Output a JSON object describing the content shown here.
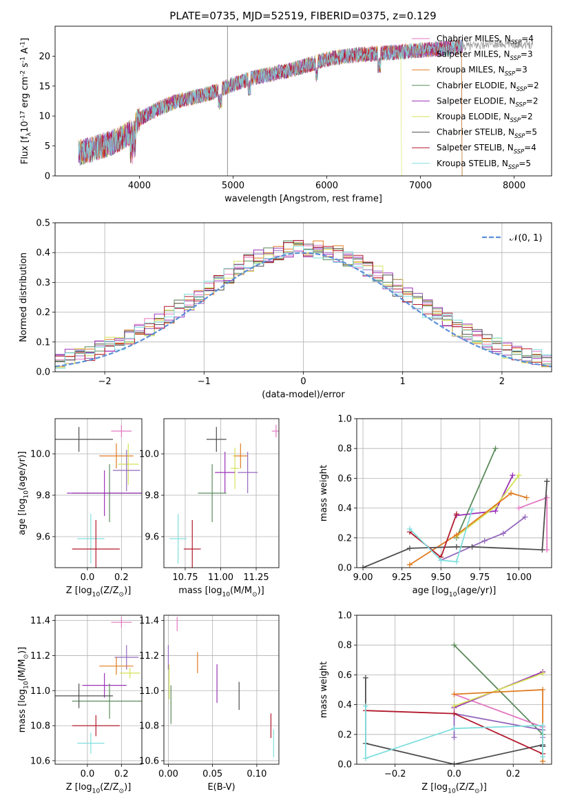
{
  "figure": {
    "title": "PLATE=0735, MJD=52519, FIBERID=0375, z=0.129"
  },
  "models": [
    {
      "name": "Chabrier MILES, N$_{SSP}$=4",
      "color": "#e377c2"
    },
    {
      "name": "Salpeter MILES, N$_{SSP}$=3",
      "color": "#9467bd"
    },
    {
      "name": "Kroupa MILES, N$_{SSP}$=3",
      "color": "#e07b20"
    },
    {
      "name": "Chabrier ELODIE, N$_{SSP}$=2",
      "color": "#5a8a5a"
    },
    {
      "name": "Salpeter ELODIE, N$_{SSP}$=2",
      "color": "#9b30b8"
    },
    {
      "name": "Kroupa ELODIE, N$_{SSP}$=2",
      "color": "#d4e157"
    },
    {
      "name": "Chabrier STELIB, N$_{SSP}$=5",
      "color": "#4d4d4d"
    },
    {
      "name": "Salpeter STELIB, N$_{SSP}$=4",
      "color": "#b2182b"
    },
    {
      "name": "Kroupa STELIB, N$_{SSP}$=5",
      "color": "#80dede"
    }
  ],
  "chart_data": [
    {
      "id": "spectrum",
      "type": "line",
      "title": "PLATE=0735, MJD=52519, FIBERID=0375, z=0.129",
      "xlabel": "wavelength [Angstrom, rest frame]",
      "ylabel": "Flux [f$_\\lambda$10$^{-17}$ erg cm$^{-2}$ s$^{-1}$ A$^{-1}$]",
      "xlim": [
        3100,
        8400
      ],
      "ylim": [
        0,
        25
      ],
      "xticks": [
        4000,
        5000,
        6000,
        7000,
        8000
      ],
      "yticks": [
        0,
        5,
        10,
        15,
        20
      ],
      "grid": false,
      "legend": "top-right",
      "continuum": [
        [
          3350,
          3.8
        ],
        [
          3500,
          4.5
        ],
        [
          3700,
          5.5
        ],
        [
          3900,
          7.2
        ],
        [
          4000,
          9.5
        ],
        [
          4200,
          11.2
        ],
        [
          4400,
          12.5
        ],
        [
          4600,
          13.2
        ],
        [
          4800,
          14.0
        ],
        [
          5000,
          15.3
        ],
        [
          5200,
          16.3
        ],
        [
          5400,
          17.0
        ],
        [
          5600,
          17.6
        ],
        [
          5800,
          18.5
        ],
        [
          6000,
          19.5
        ],
        [
          6200,
          20.0
        ],
        [
          6400,
          20.3
        ],
        [
          6600,
          20.5
        ],
        [
          6800,
          20.7
        ],
        [
          7000,
          21.0
        ],
        [
          7200,
          21.2
        ],
        [
          7400,
          21.5
        ],
        [
          7600,
          21.8
        ],
        [
          7800,
          22.0
        ],
        [
          8000,
          22.0
        ],
        [
          8200,
          22.0
        ]
      ]
    },
    {
      "id": "residuals",
      "type": "line",
      "xlabel": "(data-model)/error",
      "ylabel": "Normed distribution",
      "xlim": [
        -2.5,
        2.5
      ],
      "ylim": [
        0,
        0.5
      ],
      "xticks": [
        -2,
        -1,
        0,
        1,
        2
      ],
      "yticks": [
        0.0,
        0.1,
        0.2,
        0.3,
        0.4,
        0.5
      ],
      "grid": true,
      "legend": "top-right",
      "reference": {
        "name": "$\\mathcal{N}(0, 1)$",
        "color": "#5b8fd6",
        "mean": 0,
        "sigma": 1
      }
    },
    {
      "id": "age-vs-Z",
      "type": "scatter",
      "xlabel": "Z [log$_{10}$(Z/Z$_\\odot$)]",
      "ylabel": "age  [log$_{10}$(age/yr)]",
      "xlim": [
        -0.19,
        0.32
      ],
      "ylim": [
        9.45,
        10.17
      ],
      "xticks": [
        0.0,
        0.2
      ],
      "yticks": [
        9.6,
        9.8,
        10.0
      ],
      "grid": true,
      "points": [
        {
          "model": 0,
          "x": 0.2,
          "xerr": 0.06,
          "y": 10.11,
          "yerr": 0.03
        },
        {
          "model": 2,
          "x": 0.17,
          "xerr": 0.1,
          "y": 9.99,
          "yerr": 0.06
        },
        {
          "model": 5,
          "x": 0.24,
          "xerr": 0.06,
          "y": 9.95,
          "yerr": 0.1
        },
        {
          "model": 1,
          "x": 0.23,
          "xerr": 0.08,
          "y": 9.92,
          "yerr": 0.1
        },
        {
          "model": 3,
          "x": 0.13,
          "xerr": 0.22,
          "y": 9.81,
          "yerr": 0.14
        },
        {
          "model": 4,
          "x": 0.1,
          "xerr": 0.22,
          "y": 9.81,
          "yerr": 0.11
        },
        {
          "model": 6,
          "x": -0.05,
          "xerr": 0.2,
          "y": 10.07,
          "yerr": 0.06
        },
        {
          "model": 8,
          "x": 0.02,
          "xerr": 0.08,
          "y": 9.59,
          "yerr": 0.12
        },
        {
          "model": 7,
          "x": 0.05,
          "xerr": 0.14,
          "y": 9.54,
          "yerr": 0.14
        }
      ]
    },
    {
      "id": "age-vs-mass",
      "type": "scatter",
      "xlabel": "mass [log$_{10}$(M/M$_\\odot$)]",
      "ylabel": "",
      "xlim": [
        10.6,
        11.41
      ],
      "ylim": [
        9.45,
        10.17
      ],
      "xticks": [
        10.75,
        11.0,
        11.25
      ],
      "yticks": [
        9.6,
        9.8,
        10.0
      ],
      "xticklabels": [
        "10.75",
        "11.00",
        "11.25"
      ],
      "grid": true,
      "points": [
        {
          "model": 0,
          "x": 11.39,
          "xerr": 0.03,
          "y": 10.11,
          "yerr": 0.03
        },
        {
          "model": 2,
          "x": 11.14,
          "xerr": 0.05,
          "y": 9.99,
          "yerr": 0.06
        },
        {
          "model": 5,
          "x": 11.1,
          "xerr": 0.03,
          "y": 9.93,
          "yerr": 0.1
        },
        {
          "model": 1,
          "x": 11.19,
          "xerr": 0.07,
          "y": 9.91,
          "yerr": 0.1
        },
        {
          "model": 4,
          "x": 11.03,
          "xerr": 0.07,
          "y": 9.91,
          "yerr": 0.1
        },
        {
          "model": 6,
          "x": 10.97,
          "xerr": 0.07,
          "y": 10.07,
          "yerr": 0.06
        },
        {
          "model": 3,
          "x": 10.94,
          "xerr": 0.1,
          "y": 9.81,
          "yerr": 0.14
        },
        {
          "model": 8,
          "x": 10.7,
          "xerr": 0.06,
          "y": 9.59,
          "yerr": 0.12
        },
        {
          "model": 7,
          "x": 10.8,
          "xerr": 0.06,
          "y": 9.54,
          "yerr": 0.14
        }
      ]
    },
    {
      "id": "weights-vs-age",
      "type": "line",
      "xlabel": "age  [log$_{10}$(age/yr)]",
      "ylabel": "mass weight",
      "xlim": [
        8.96,
        10.21
      ],
      "ylim": [
        0,
        1.0
      ],
      "xticks": [
        9.0,
        9.25,
        9.5,
        9.75,
        10.0
      ],
      "yticks": [
        0.0,
        0.2,
        0.4,
        0.6,
        0.8,
        1.0
      ],
      "grid": true,
      "series": [
        {
          "model": 3,
          "x": [
            9.6,
            9.85
          ],
          "y": [
            0.2,
            0.8
          ]
        },
        {
          "model": 4,
          "x": [
            9.6,
            9.85,
            9.96
          ],
          "y": [
            0.35,
            0.38,
            0.62
          ]
        },
        {
          "model": 5,
          "x": [
            9.6,
            9.85,
            10.0
          ],
          "y": [
            0.21,
            0.41,
            0.62
          ]
        },
        {
          "model": 2,
          "x": [
            9.3,
            9.6,
            9.95,
            10.05
          ],
          "y": [
            0.02,
            0.22,
            0.5,
            0.47
          ]
        },
        {
          "model": 0,
          "x": [
            10.0,
            10.18,
            10.18
          ],
          "y": [
            0.4,
            0.47,
            0.12
          ]
        },
        {
          "model": 1,
          "x": [
            9.5,
            9.78,
            9.9,
            10.04
          ],
          "y": [
            0.05,
            0.18,
            0.23,
            0.34
          ]
        },
        {
          "model": 6,
          "x": [
            9.0,
            9.3,
            9.6,
            9.7,
            10.15,
            10.18,
            10.18
          ],
          "y": [
            0.0,
            0.13,
            0.14,
            0.14,
            0.12,
            0.58,
            0.58
          ]
        },
        {
          "model": 7,
          "x": [
            9.3,
            9.5,
            9.6
          ],
          "y": [
            0.24,
            0.07,
            0.36
          ]
        },
        {
          "model": 8,
          "x": [
            9.3,
            9.5,
            9.6,
            9.7
          ],
          "y": [
            0.26,
            0.05,
            0.04,
            0.39
          ]
        }
      ]
    },
    {
      "id": "mass-vs-Z",
      "type": "scatter",
      "xlabel": "Z [log$_{10}$(Z/Z$_\\odot$)]",
      "ylabel": "mass [log$_{10}$(M/M$_\\odot$)]",
      "xlim": [
        -0.19,
        0.32
      ],
      "ylim": [
        10.58,
        11.43
      ],
      "xticks": [
        0.0,
        0.2
      ],
      "yticks": [
        10.6,
        10.8,
        11.0,
        11.2,
        11.4
      ],
      "grid": true,
      "points": [
        {
          "model": 0,
          "x": 0.2,
          "xerr": 0.06,
          "y": 11.39,
          "yerr": 0.03
        },
        {
          "model": 1,
          "x": 0.23,
          "xerr": 0.07,
          "y": 11.19,
          "yerr": 0.07
        },
        {
          "model": 2,
          "x": 0.17,
          "xerr": 0.1,
          "y": 11.14,
          "yerr": 0.05
        },
        {
          "model": 5,
          "x": 0.25,
          "xerr": 0.06,
          "y": 11.1,
          "yerr": 0.03
        },
        {
          "model": 4,
          "x": 0.1,
          "xerr": 0.13,
          "y": 11.03,
          "yerr": 0.07
        },
        {
          "model": 3,
          "x": 0.13,
          "xerr": 0.22,
          "y": 10.94,
          "yerr": 0.1
        },
        {
          "model": 6,
          "x": -0.05,
          "xerr": 0.2,
          "y": 10.97,
          "yerr": 0.07
        },
        {
          "model": 7,
          "x": 0.05,
          "xerr": 0.14,
          "y": 10.8,
          "yerr": 0.06
        },
        {
          "model": 8,
          "x": 0.02,
          "xerr": 0.08,
          "y": 10.7,
          "yerr": 0.06
        }
      ]
    },
    {
      "id": "mass-vs-EBV",
      "type": "scatter",
      "xlabel": "E(B-V)",
      "ylabel": "",
      "xlim": [
        -0.005,
        0.125
      ],
      "ylim": [
        10.58,
        11.43
      ],
      "xticks": [
        0.0,
        0.05,
        0.1
      ],
      "yticks": [
        10.6,
        10.8,
        11.0,
        11.2,
        11.4
      ],
      "xticklabels": [
        "0.00",
        "0.05",
        "0.10"
      ],
      "grid": true,
      "points": [
        {
          "model": 0,
          "x": 0.01,
          "xerr": 0.0,
          "y": 11.38,
          "yerr": 0.04
        },
        {
          "model": 1,
          "x": 0.0,
          "xerr": 0.0,
          "y": 11.19,
          "yerr": 0.07
        },
        {
          "model": 2,
          "x": 0.033,
          "xerr": 0.0,
          "y": 11.16,
          "yerr": 0.06
        },
        {
          "model": 5,
          "x": 0.001,
          "xerr": 0.0,
          "y": 11.05,
          "yerr": 0.1
        },
        {
          "model": 3,
          "x": 0.003,
          "xerr": 0.0,
          "y": 10.92,
          "yerr": 0.11
        },
        {
          "model": 4,
          "x": 0.055,
          "xerr": 0.0,
          "y": 11.04,
          "yerr": 0.11
        },
        {
          "model": 6,
          "x": 0.08,
          "xerr": 0.0,
          "y": 10.97,
          "yerr": 0.08
        },
        {
          "model": 7,
          "x": 0.116,
          "xerr": 0.0,
          "y": 10.8,
          "yerr": 0.07
        },
        {
          "model": 8,
          "x": 0.119,
          "xerr": 0.0,
          "y": 10.7,
          "yerr": 0.08
        }
      ]
    },
    {
      "id": "weights-vs-Z",
      "type": "line",
      "xlabel": "Z [log$_{10}$(Z/Z$_\\odot$)]",
      "ylabel": "mass weight",
      "xlim": [
        -0.33,
        0.33
      ],
      "ylim": [
        0,
        1.0
      ],
      "xticks": [
        -0.2,
        0.0,
        0.2
      ],
      "yticks": [
        0.0,
        0.2,
        0.4,
        0.6,
        0.8,
        1.0
      ],
      "grid": true,
      "series": [
        {
          "model": 3,
          "x": [
            0.0,
            0.3
          ],
          "y": [
            0.8,
            0.2
          ]
        },
        {
          "model": 0,
          "x": [
            0.0,
            0.3,
            0.3
          ],
          "y": [
            0.47,
            0.25,
            0.12
          ]
        },
        {
          "model": 4,
          "x": [
            0.0,
            0.3
          ],
          "y": [
            0.38,
            0.62
          ]
        },
        {
          "model": 5,
          "x": [
            0.0,
            0.3
          ],
          "y": [
            0.39,
            0.61
          ]
        },
        {
          "model": 2,
          "x": [
            0.0,
            0.3,
            0.3
          ],
          "y": [
            0.47,
            0.5,
            0.02
          ]
        },
        {
          "model": 1,
          "x": [
            0.0,
            0.0,
            0.3,
            0.3
          ],
          "y": [
            0.18,
            0.34,
            0.23,
            0.18
          ]
        },
        {
          "model": 6,
          "x": [
            -0.3,
            -0.3,
            0.0,
            0.3,
            0.3
          ],
          "y": [
            0.58,
            0.14,
            0.0,
            0.13,
            0.12
          ]
        },
        {
          "model": 7,
          "x": [
            -0.3,
            0.0,
            0.3
          ],
          "y": [
            0.36,
            0.34,
            0.07
          ]
        },
        {
          "model": 8,
          "x": [
            -0.3,
            -0.3,
            0.0,
            0.3,
            0.3
          ],
          "y": [
            0.39,
            0.04,
            0.24,
            0.26,
            0.05
          ]
        }
      ]
    }
  ]
}
